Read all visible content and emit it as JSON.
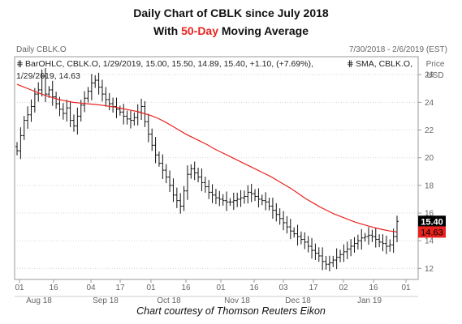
{
  "header": {
    "line1": "Daily Chart of CBLK since July 2018",
    "line2_pre": "With ",
    "line2_accent": "50-Day",
    "line2_post": " Moving Average",
    "accent_color": "#e8231f"
  },
  "footer": {
    "credit": "Chart courtesy of Thomson Reuters Eikon"
  },
  "chart_data": {
    "type": "ohlc",
    "chart_label": "Daily CBLK.O",
    "date_range": "7/30/2018 - 2/6/2019 (EST)",
    "axis_title": [
      "Price",
      "USD"
    ],
    "legend": {
      "ohlc": "BarOHLC, CBLK.O, 1/29/2019, 15.00, 15.50, 14.89, 15.40, +1.10, (+7.69%),",
      "sma_name": "SMA, CBLK.O,",
      "sma_value": "1/29/2019, 14.63"
    },
    "last_price": "15.40",
    "last_sma": "14.63",
    "ylim": [
      11.2,
      27.3
    ],
    "y_ticks": [
      "12",
      "14",
      "16",
      "18",
      "20",
      "22",
      "24",
      "26"
    ],
    "x_day_ticks": [
      "01",
      "16",
      "04",
      "17",
      "01",
      "16",
      "01",
      "16",
      "03",
      "17",
      "02",
      "16",
      "01"
    ],
    "x_month_labels": [
      "Aug 18",
      "Sep 18",
      "Oct 18",
      "Nov 18",
      "Dec 18",
      "Jan 19"
    ],
    "grid": "horizontal dotted",
    "series": [
      {
        "name": "BarOHLC",
        "color": "#000000",
        "closes": [
          20.5,
          21.6,
          22.7,
          23.1,
          23.7,
          24.6,
          24.9,
          25.9,
          24.6,
          24.9,
          24.4,
          23.9,
          23.5,
          23.2,
          23.6,
          22.7,
          22.3,
          23.0,
          23.8,
          24.3,
          24.8,
          25.4,
          25.6,
          25.1,
          24.6,
          24.2,
          23.9,
          23.7,
          23.5,
          23.3,
          23.0,
          22.8,
          22.7,
          22.9,
          23.3,
          23.7,
          22.6,
          21.7,
          20.9,
          20.2,
          19.6,
          19.1,
          18.6,
          18.0,
          17.3,
          16.9,
          16.5,
          17.6,
          18.8,
          19.2,
          18.9,
          18.6,
          18.2,
          17.9,
          17.5,
          17.3,
          17.1,
          17.0,
          16.9,
          16.8,
          16.8,
          16.9,
          17.0,
          17.1,
          17.2,
          17.5,
          17.4,
          17.2,
          17.0,
          16.9,
          16.8,
          16.5,
          16.2,
          15.9,
          15.6,
          15.3,
          15.0,
          14.7,
          14.5,
          14.3,
          14.1,
          13.9,
          13.6,
          13.3,
          13.1,
          12.9,
          12.5,
          12.3,
          12.4,
          12.6,
          12.8,
          13.0,
          13.2,
          13.4,
          13.6,
          13.8,
          14.0,
          14.2,
          14.3,
          14.4,
          14.3,
          14.1,
          13.9,
          13.8,
          13.6,
          13.7,
          14.3,
          15.4
        ]
      },
      {
        "name": "SMA",
        "color": "#e8231f",
        "values": [
          25.3,
          25.1,
          24.9,
          24.7,
          24.5,
          24.35,
          24.2,
          24.1,
          24.0,
          23.95,
          23.9,
          23.85,
          23.8,
          23.72,
          23.65,
          23.55,
          23.45,
          23.35,
          23.2,
          23.05,
          22.85,
          22.6,
          22.3,
          22.0,
          21.7,
          21.45,
          21.2,
          20.95,
          20.65,
          20.4,
          20.15,
          19.9,
          19.65,
          19.4,
          19.15,
          18.9,
          18.65,
          18.35,
          18.05,
          17.75,
          17.4,
          17.05,
          16.75,
          16.45,
          16.2,
          15.95,
          15.75,
          15.55,
          15.35,
          15.2,
          15.05,
          14.92,
          14.8,
          14.7,
          14.63
        ]
      }
    ]
  }
}
